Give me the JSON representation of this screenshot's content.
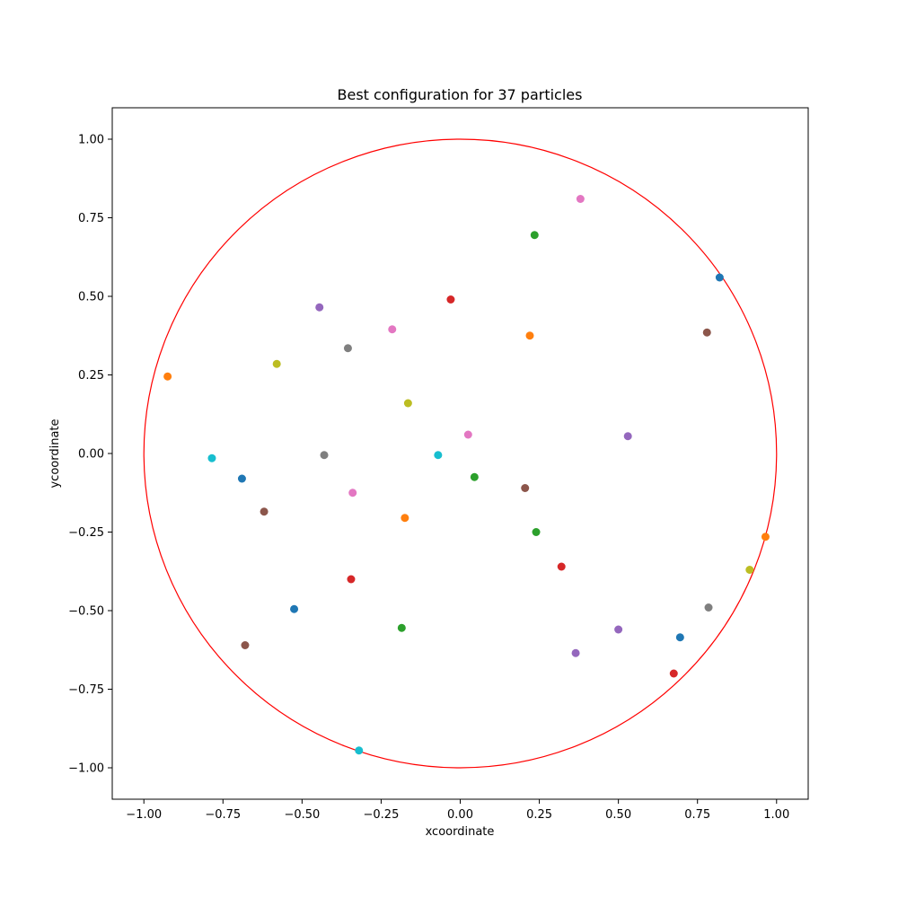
{
  "chart_data": {
    "type": "scatter",
    "title": "Best configuration for 37 particles",
    "xlabel": "xcoordinate",
    "ylabel": "ycoordinate",
    "xlim": [
      -1.1,
      1.1
    ],
    "ylim": [
      -1.1,
      1.1
    ],
    "grid": false,
    "x_ticks": [
      -1.0,
      -0.75,
      -0.5,
      -0.25,
      0.0,
      0.25,
      0.5,
      0.75,
      1.0
    ],
    "y_ticks": [
      -1.0,
      -0.75,
      -0.5,
      -0.25,
      0.0,
      0.25,
      0.5,
      0.75,
      1.0
    ],
    "x_tick_labels": [
      "−1.00",
      "−0.75",
      "−0.50",
      "−0.25",
      "0.00",
      "0.25",
      "0.50",
      "0.75",
      "1.00"
    ],
    "y_tick_labels": [
      "−1.00",
      "−0.75",
      "−0.50",
      "−0.25",
      "0.00",
      "0.25",
      "0.50",
      "0.75",
      "1.00"
    ],
    "boundary_circle": {
      "cx": 0,
      "cy": 0,
      "r": 1,
      "color": "#ff0000"
    },
    "points": [
      {
        "x": 0.82,
        "y": 0.56,
        "color": "#1f77b4"
      },
      {
        "x": -0.69,
        "y": -0.08,
        "color": "#1f77b4"
      },
      {
        "x": -0.525,
        "y": -0.495,
        "color": "#1f77b4"
      },
      {
        "x": 0.695,
        "y": -0.585,
        "color": "#1f77b4"
      },
      {
        "x": -0.925,
        "y": 0.245,
        "color": "#ff7f0e"
      },
      {
        "x": 0.22,
        "y": 0.375,
        "color": "#ff7f0e"
      },
      {
        "x": -0.175,
        "y": -0.205,
        "color": "#ff7f0e"
      },
      {
        "x": 0.965,
        "y": -0.265,
        "color": "#ff7f0e"
      },
      {
        "x": 0.235,
        "y": 0.695,
        "color": "#2ca02c"
      },
      {
        "x": 0.045,
        "y": -0.075,
        "color": "#2ca02c"
      },
      {
        "x": 0.24,
        "y": -0.25,
        "color": "#2ca02c"
      },
      {
        "x": -0.185,
        "y": -0.555,
        "color": "#2ca02c"
      },
      {
        "x": -0.03,
        "y": 0.49,
        "color": "#d62728"
      },
      {
        "x": -0.345,
        "y": -0.4,
        "color": "#d62728"
      },
      {
        "x": 0.32,
        "y": -0.36,
        "color": "#d62728"
      },
      {
        "x": 0.675,
        "y": -0.7,
        "color": "#d62728"
      },
      {
        "x": -0.445,
        "y": 0.465,
        "color": "#9467bd"
      },
      {
        "x": 0.53,
        "y": 0.055,
        "color": "#9467bd"
      },
      {
        "x": 0.5,
        "y": -0.56,
        "color": "#9467bd"
      },
      {
        "x": 0.365,
        "y": -0.635,
        "color": "#9467bd"
      },
      {
        "x": 0.78,
        "y": 0.385,
        "color": "#8c564b"
      },
      {
        "x": -0.62,
        "y": -0.185,
        "color": "#8c564b"
      },
      {
        "x": 0.205,
        "y": -0.11,
        "color": "#8c564b"
      },
      {
        "x": -0.68,
        "y": -0.61,
        "color": "#8c564b"
      },
      {
        "x": 0.38,
        "y": 0.81,
        "color": "#e377c2"
      },
      {
        "x": -0.215,
        "y": 0.395,
        "color": "#e377c2"
      },
      {
        "x": 0.025,
        "y": 0.06,
        "color": "#e377c2"
      },
      {
        "x": -0.34,
        "y": -0.125,
        "color": "#e377c2"
      },
      {
        "x": -0.355,
        "y": 0.335,
        "color": "#7f7f7f"
      },
      {
        "x": -0.43,
        "y": -0.005,
        "color": "#7f7f7f"
      },
      {
        "x": 0.785,
        "y": -0.49,
        "color": "#7f7f7f"
      },
      {
        "x": -0.58,
        "y": 0.285,
        "color": "#bcbd22"
      },
      {
        "x": -0.165,
        "y": 0.16,
        "color": "#bcbd22"
      },
      {
        "x": 0.915,
        "y": -0.37,
        "color": "#bcbd22"
      },
      {
        "x": -0.785,
        "y": -0.015,
        "color": "#17becf"
      },
      {
        "x": -0.07,
        "y": -0.005,
        "color": "#17becf"
      },
      {
        "x": -0.32,
        "y": -0.945,
        "color": "#17becf"
      }
    ]
  }
}
